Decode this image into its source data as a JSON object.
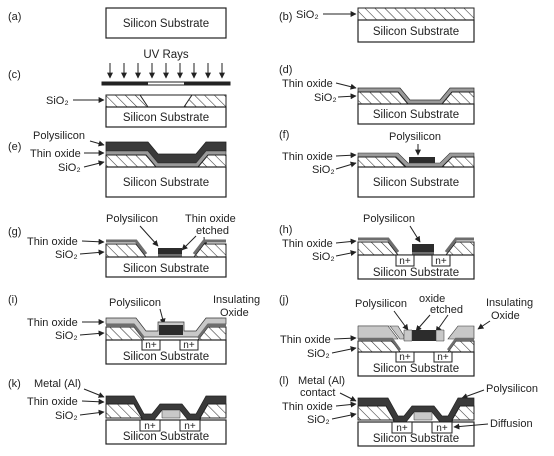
{
  "colors": {
    "ink": "#222222",
    "oxide": "#9a9a9a",
    "poly": "#2c2c2c",
    "thin": "#6e6e6e",
    "metal": "#3a3a3a",
    "bg": "#ffffff"
  },
  "panels": {
    "a": {
      "tag": "(a)",
      "substrate": "Silicon Substrate"
    },
    "b": {
      "tag": "(b)",
      "sio2": "SiO₂",
      "substrate": "Silicon Substrate"
    },
    "c": {
      "tag": "(c)",
      "uv": "UV Rays",
      "sio2": "SiO₂",
      "substrate": "Silicon Substrate"
    },
    "d": {
      "tag": "(d)",
      "thin_oxide": "Thin oxide",
      "sio2": "SiO₂",
      "substrate": "Silicon Substrate"
    },
    "e": {
      "tag": "(e)",
      "polysilicon": "Polysilicon",
      "thin_oxide": "Thin oxide",
      "sio2": "SiO₂",
      "substrate": "Silicon Substrate"
    },
    "f": {
      "tag": "(f)",
      "polysilicon": "Polysilicon",
      "thin_oxide": "Thin oxide",
      "sio2": "SiO₂",
      "substrate": "Silicon Substrate"
    },
    "g": {
      "tag": "(g)",
      "polysilicon": "Polysilicon",
      "etched_1": "Thin oxide",
      "etched_2": "etched",
      "thin_oxide": "Thin oxide",
      "sio2": "SiO₂",
      "substrate": "Silicon Substrate"
    },
    "h": {
      "tag": "(h)",
      "polysilicon": "Polysilicon",
      "thin_oxide": "Thin oxide",
      "sio2": "SiO₂",
      "substrate": "Silicon Substrate",
      "n1": "n+",
      "n2": "n+"
    },
    "i": {
      "tag": "(i)",
      "polysilicon": "Polysilicon",
      "ins_1": "Insulating",
      "ins_2": "Oxide",
      "thin_oxide": "Thin oxide",
      "sio2": "SiO₂",
      "substrate": "Silicon Substrate",
      "n1": "n+",
      "n2": "n+"
    },
    "j": {
      "tag": "(j)",
      "polysilicon": "Polysilicon",
      "oxide_1": "oxide",
      "oxide_2": "etched",
      "ins_1": "Insulating",
      "ins_2": "Oxide",
      "thin_oxide": "Thin oxide",
      "sio2": "SiO₂",
      "substrate": "Silicon Substrate",
      "n1": "n+",
      "n2": "n+"
    },
    "k": {
      "tag": "(k)",
      "metal": "Metal (Al)",
      "thin_oxide": "Thin oxide",
      "sio2": "SiO₂",
      "substrate": "Silicon Substrate",
      "n1": "n+",
      "n2": "n+"
    },
    "l": {
      "tag": "(l)",
      "metal_1": "Metal (Al)",
      "metal_2": "contact",
      "polysilicon": "Polysilicon",
      "thin_oxide": "Thin oxide",
      "sio2": "SiO₂",
      "diffusion": "Diffusion",
      "substrate": "Silicon Substrate",
      "n1": "n+",
      "n2": "n+"
    }
  }
}
